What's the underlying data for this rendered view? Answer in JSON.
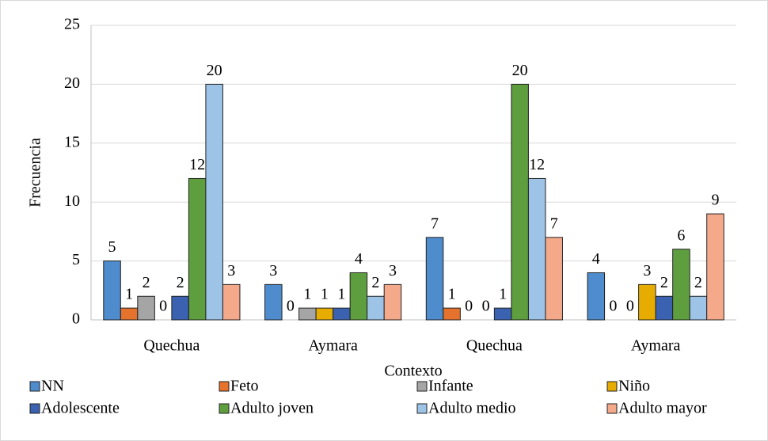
{
  "chart_data": {
    "type": "bar",
    "x_label": "Contexto",
    "y_label": "Frecuencia",
    "categories": [
      "Quechua",
      "Aymara",
      "Quechua",
      "Aymara"
    ],
    "series": [
      {
        "name": "NN",
        "color": "#4e8ccd",
        "values": [
          5,
          3,
          7,
          4
        ]
      },
      {
        "name": "Feto",
        "color": "#e5722d",
        "values": [
          1,
          0,
          1,
          0
        ]
      },
      {
        "name": "Infante",
        "color": "#a5a5a5",
        "values": [
          2,
          1,
          0,
          0
        ]
      },
      {
        "name": "Niño",
        "color": "#e7ac00",
        "values": [
          0,
          1,
          0,
          3
        ]
      },
      {
        "name": "Adolescente",
        "color": "#3a62b0",
        "values": [
          2,
          1,
          1,
          2
        ]
      },
      {
        "name": "Adulto joven",
        "color": "#5e9e3e",
        "values": [
          12,
          4,
          20,
          6
        ]
      },
      {
        "name": "Adulto medio",
        "color": "#9dc3e6",
        "values": [
          20,
          2,
          12,
          2
        ]
      },
      {
        "name": "Adulto mayor",
        "color": "#f4a98a",
        "values": [
          3,
          3,
          7,
          9
        ]
      }
    ],
    "ylim": [
      0,
      25
    ],
    "yticks": [
      0,
      5,
      10,
      15,
      20,
      25
    ],
    "grid": true,
    "legend": "bottom"
  }
}
